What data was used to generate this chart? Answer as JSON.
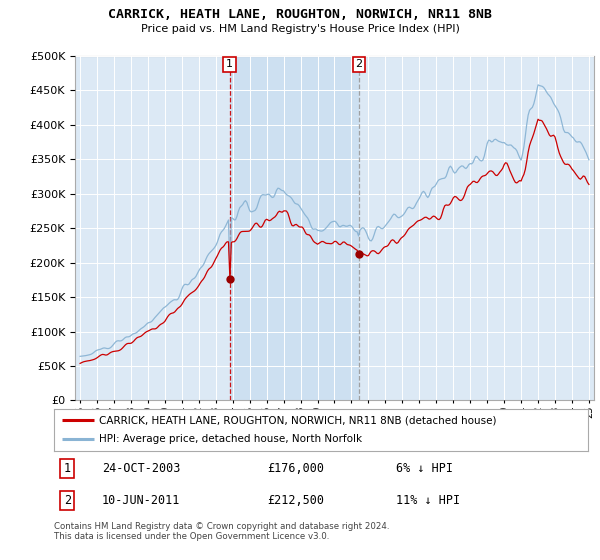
{
  "title": "CARRICK, HEATH LANE, ROUGHTON, NORWICH, NR11 8NB",
  "subtitle": "Price paid vs. HM Land Registry's House Price Index (HPI)",
  "legend_line1": "CARRICK, HEATH LANE, ROUGHTON, NORWICH, NR11 8NB (detached house)",
  "legend_line2": "HPI: Average price, detached house, North Norfolk",
  "annotation1_date": "24-OCT-2003",
  "annotation1_price": "£176,000",
  "annotation1_hpi": "6% ↓ HPI",
  "annotation2_date": "10-JUN-2011",
  "annotation2_price": "£212,500",
  "annotation2_hpi": "11% ↓ HPI",
  "footer": "Contains HM Land Registry data © Crown copyright and database right 2024.\nThis data is licensed under the Open Government Licence v3.0.",
  "hpi_color": "#8ab4d4",
  "price_color": "#cc0000",
  "marker_color": "#990000",
  "shade_color": "#c8ddf0",
  "background_color": "#dce9f5",
  "ylim": [
    0,
    500000
  ],
  "yticks": [
    0,
    50000,
    100000,
    150000,
    200000,
    250000,
    300000,
    350000,
    400000,
    450000,
    500000
  ],
  "sale1_year": 2003.81,
  "sale1_value": 176000,
  "sale2_year": 2011.44,
  "sale2_value": 212500
}
